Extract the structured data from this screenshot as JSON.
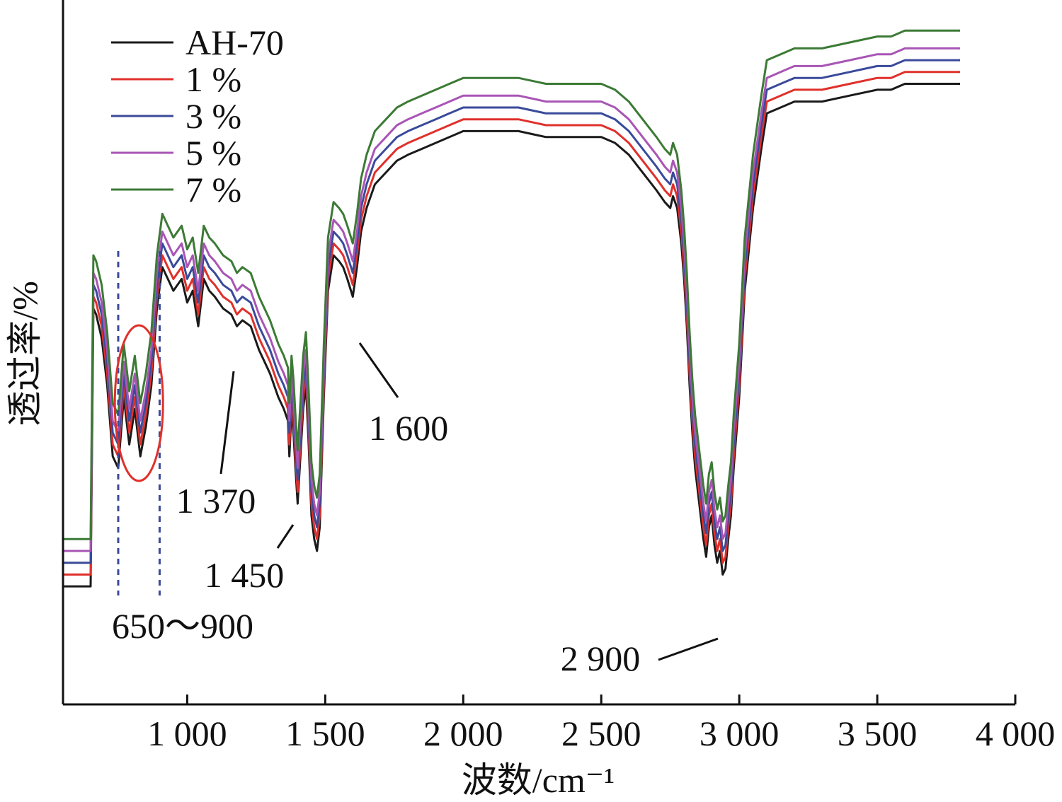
{
  "chart_data": {
    "type": "line",
    "title": "",
    "xlabel": "波数/cm⁻¹",
    "ylabel": "透过率/%",
    "xlim": [
      550,
      4000
    ],
    "ylim": [
      0,
      100
    ],
    "xticks": [
      1000,
      1500,
      2000,
      2500,
      3000,
      3500,
      4000
    ],
    "xtick_labels": [
      "1 000",
      "1 500",
      "2 000",
      "2 500",
      "3 000",
      "3 500",
      "4 000"
    ],
    "yticks_shown": false,
    "grid": false,
    "legend_position": "top-left",
    "series_shape_x": [
      550,
      650,
      660,
      670,
      690,
      710,
      730,
      750,
      770,
      790,
      810,
      830,
      850,
      870,
      890,
      910,
      930,
      950,
      980,
      1000,
      1020,
      1040,
      1050,
      1060,
      1080,
      1100,
      1130,
      1160,
      1180,
      1200,
      1230,
      1260,
      1300,
      1330,
      1350,
      1365,
      1370,
      1378,
      1385,
      1392,
      1400,
      1410,
      1420,
      1430,
      1440,
      1450,
      1460,
      1470,
      1480,
      1495,
      1510,
      1530,
      1550,
      1565,
      1580,
      1600,
      1615,
      1630,
      1650,
      1680,
      1720,
      1760,
      1800,
      1850,
      1900,
      1950,
      2000,
      2100,
      2200,
      2300,
      2400,
      2500,
      2550,
      2600,
      2650,
      2700,
      2730,
      2750,
      2760,
      2775,
      2790,
      2800,
      2810,
      2820,
      2830,
      2840,
      2850,
      2860,
      2870,
      2880,
      2890,
      2900,
      2910,
      2920,
      2930,
      2940,
      2950,
      2960,
      2970,
      2980,
      3000,
      3020,
      3050,
      3080,
      3100,
      3150,
      3200,
      3300,
      3400,
      3500,
      3550,
      3600,
      3650,
      3700,
      3750,
      3800
    ],
    "series": [
      {
        "name": "AH-70",
        "color": "#1a1a1a",
        "y": [
          8,
          8,
          55,
          54,
          50,
          42,
          30,
          28,
          40,
          32,
          38,
          30,
          35,
          42,
          55,
          62,
          60,
          58,
          60,
          56,
          58,
          52,
          56,
          60,
          58,
          57,
          55,
          54,
          52,
          53,
          52,
          48,
          44,
          40,
          38,
          36,
          30,
          38,
          34,
          28,
          22,
          30,
          38,
          42,
          32,
          20,
          16,
          14,
          18,
          40,
          58,
          64,
          63,
          62,
          60,
          57,
          62,
          68,
          72,
          76,
          78,
          80,
          81,
          82,
          83,
          84,
          85,
          85,
          85,
          84,
          84,
          84,
          83,
          81,
          78,
          75,
          73,
          72,
          74,
          72,
          66,
          60,
          52,
          42,
          34,
          28,
          24,
          20,
          16,
          13,
          18,
          20,
          15,
          12,
          14,
          10,
          11,
          16,
          20,
          28,
          40,
          58,
          72,
          82,
          88,
          89,
          90,
          90,
          91,
          92,
          92,
          93,
          93,
          93,
          93,
          93,
          93
        ]
      },
      {
        "name": "1 %",
        "color": "#e0302b",
        "y": [
          10,
          10,
          57,
          56,
          52,
          44,
          32,
          30,
          42,
          34,
          40,
          32,
          37,
          44,
          57,
          64,
          62,
          60,
          62,
          58,
          60,
          54,
          58,
          62,
          60,
          59,
          57,
          56,
          54,
          55,
          54,
          50,
          46,
          42,
          40,
          38,
          32,
          40,
          36,
          30,
          24,
          32,
          40,
          44,
          34,
          22,
          18,
          16,
          20,
          42,
          60,
          66,
          65,
          64,
          62,
          59,
          64,
          70,
          74,
          78,
          80,
          82,
          83,
          84,
          85,
          86,
          87,
          87,
          87,
          86,
          86,
          86,
          85,
          83,
          80,
          77,
          75,
          74,
          76,
          74,
          68,
          62,
          54,
          44,
          36,
          30,
          26,
          22,
          18,
          15,
          20,
          22,
          17,
          14,
          16,
          12,
          13,
          18,
          22,
          30,
          42,
          60,
          74,
          84,
          90,
          91,
          92,
          92,
          93,
          94,
          94,
          95,
          95,
          95,
          95,
          95,
          95
        ]
      },
      {
        "name": "3 %",
        "color": "#3a4a9a",
        "y": [
          12,
          12,
          59,
          58,
          54,
          46,
          34,
          32,
          44,
          36,
          42,
          34,
          39,
          46,
          59,
          66,
          64,
          62,
          64,
          60,
          62,
          56,
          60,
          64,
          62,
          61,
          59,
          58,
          56,
          57,
          56,
          52,
          48,
          44,
          42,
          40,
          34,
          42,
          38,
          32,
          26,
          34,
          42,
          46,
          36,
          24,
          20,
          18,
          22,
          44,
          62,
          68,
          67,
          66,
          64,
          61,
          66,
          72,
          76,
          80,
          82,
          84,
          85,
          86,
          87,
          88,
          89,
          89,
          89,
          88,
          88,
          88,
          87,
          85,
          82,
          79,
          77,
          76,
          78,
          76,
          70,
          64,
          56,
          46,
          38,
          32,
          28,
          24,
          20,
          17,
          22,
          24,
          19,
          16,
          18,
          14,
          15,
          20,
          24,
          32,
          44,
          62,
          76,
          86,
          92,
          93,
          94,
          94,
          95,
          96,
          96,
          97,
          97,
          97,
          97,
          97,
          97
        ]
      },
      {
        "name": "5 %",
        "color": "#a855b5",
        "y": [
          14,
          14,
          61,
          60,
          56,
          48,
          36,
          34,
          46,
          38,
          44,
          36,
          41,
          48,
          61,
          68,
          66,
          64,
          66,
          62,
          64,
          58,
          62,
          66,
          64,
          63,
          61,
          60,
          58,
          59,
          58,
          54,
          50,
          46,
          44,
          42,
          36,
          44,
          40,
          34,
          28,
          36,
          44,
          48,
          38,
          26,
          22,
          20,
          24,
          46,
          64,
          70,
          69,
          68,
          66,
          63,
          68,
          74,
          78,
          82,
          84,
          86,
          87,
          88,
          89,
          90,
          91,
          91,
          91,
          90,
          90,
          90,
          89,
          87,
          84,
          81,
          79,
          78,
          80,
          78,
          72,
          66,
          58,
          48,
          40,
          34,
          30,
          26,
          22,
          19,
          24,
          26,
          21,
          18,
          20,
          16,
          17,
          22,
          26,
          34,
          46,
          64,
          78,
          88,
          94,
          95,
          96,
          96,
          97,
          98,
          98,
          99,
          99,
          99,
          99,
          99,
          99
        ]
      },
      {
        "name": "7 %",
        "color": "#3c7a35",
        "y": [
          16,
          16,
          64,
          63,
          59,
          51,
          39,
          37,
          49,
          41,
          47,
          39,
          44,
          51,
          64,
          71,
          69,
          67,
          69,
          65,
          67,
          61,
          65,
          69,
          67,
          66,
          64,
          63,
          61,
          62,
          61,
          57,
          53,
          49,
          47,
          45,
          39,
          47,
          43,
          37,
          31,
          39,
          47,
          51,
          41,
          29,
          25,
          23,
          27,
          49,
          67,
          73,
          72,
          71,
          69,
          66,
          71,
          77,
          81,
          85,
          87,
          89,
          90,
          91,
          92,
          93,
          94,
          94,
          94,
          93,
          93,
          93,
          92,
          90,
          87,
          84,
          82,
          81,
          83,
          81,
          75,
          69,
          61,
          51,
          43,
          37,
          33,
          29,
          25,
          22,
          27,
          29,
          24,
          21,
          23,
          19,
          20,
          25,
          29,
          37,
          49,
          67,
          81,
          91,
          97,
          98,
          99,
          99,
          100,
          101,
          101,
          102,
          102,
          102,
          102,
          102,
          102
        ]
      }
    ],
    "annotations": [
      {
        "text": "650～900",
        "x": 775
      },
      {
        "text": "1 370",
        "x": 1370
      },
      {
        "text": "1 450",
        "x": 1450
      },
      {
        "text": "1 600",
        "x": 1600
      },
      {
        "text": "2 900",
        "x": 2900
      }
    ],
    "highlight_band": [
      750,
      900
    ]
  }
}
